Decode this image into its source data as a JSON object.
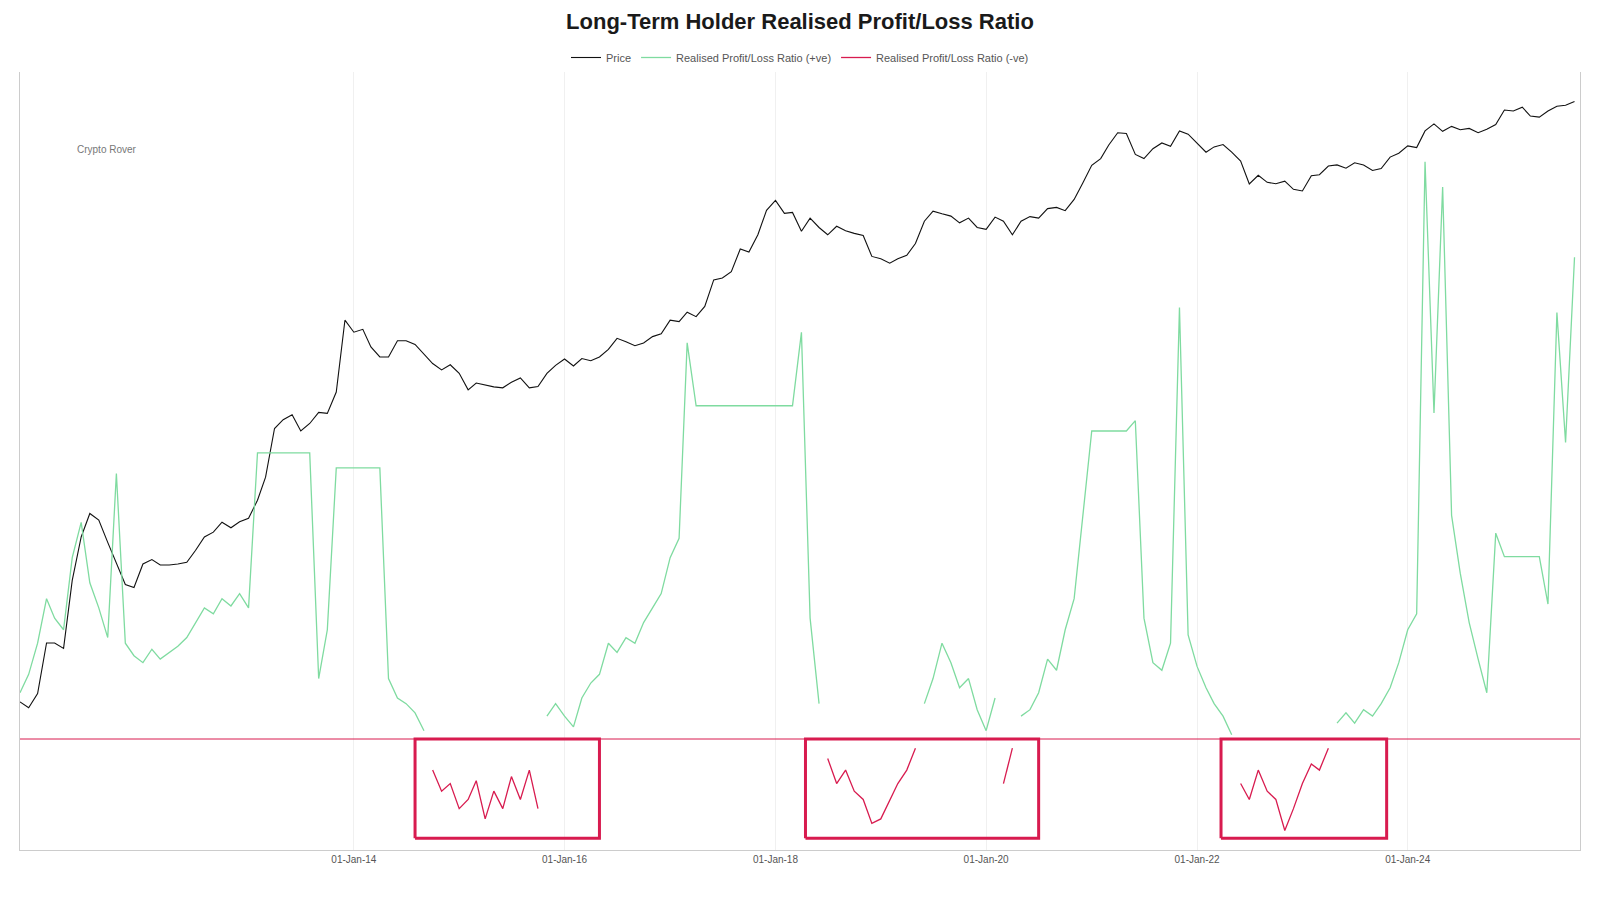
{
  "chart_data": {
    "type": "line",
    "title": "Long-Term Holder Realised Profit/Loss Ratio",
    "x": [
      "2010-11-01",
      "2010-12-01",
      "2011-01-01",
      "2011-02-01",
      "2011-03-01",
      "2011-04-01",
      "2011-05-01",
      "2011-06-01",
      "2011-07-01",
      "2011-08-01",
      "2011-09-01",
      "2011-10-01",
      "2011-11-01",
      "2011-12-01",
      "2012-01-01",
      "2012-02-01",
      "2012-03-01",
      "2012-04-01",
      "2012-05-01",
      "2012-06-01",
      "2012-07-01",
      "2012-08-01",
      "2012-09-01",
      "2012-10-01",
      "2012-11-01",
      "2012-12-01",
      "2013-01-01",
      "2013-02-01",
      "2013-03-01",
      "2013-04-01",
      "2013-05-01",
      "2013-06-01",
      "2013-07-01",
      "2013-08-01",
      "2013-09-01",
      "2013-10-01",
      "2013-11-01",
      "2013-12-01",
      "2014-01-01",
      "2014-02-01",
      "2014-03-01",
      "2014-04-01",
      "2014-05-01",
      "2014-06-01",
      "2014-07-01",
      "2014-08-01",
      "2014-09-01",
      "2014-10-01",
      "2014-11-01",
      "2014-12-01",
      "2015-01-01",
      "2015-02-01",
      "2015-03-01",
      "2015-04-01",
      "2015-05-01",
      "2015-06-01",
      "2015-07-01",
      "2015-08-01",
      "2015-09-01",
      "2015-10-01",
      "2015-11-01",
      "2015-12-01",
      "2016-01-01",
      "2016-02-01",
      "2016-03-01",
      "2016-04-01",
      "2016-05-01",
      "2016-06-01",
      "2016-07-01",
      "2016-08-01",
      "2016-09-01",
      "2016-10-01",
      "2016-11-01",
      "2016-12-01",
      "2017-01-01",
      "2017-02-01",
      "2017-03-01",
      "2017-04-01",
      "2017-05-01",
      "2017-06-01",
      "2017-07-01",
      "2017-08-01",
      "2017-09-01",
      "2017-10-01",
      "2017-11-01",
      "2017-12-01",
      "2018-01-01",
      "2018-02-01",
      "2018-03-01",
      "2018-04-01",
      "2018-05-01",
      "2018-06-01",
      "2018-07-01",
      "2018-08-01",
      "2018-09-01",
      "2018-10-01",
      "2018-11-01",
      "2018-12-01",
      "2019-01-01",
      "2019-02-01",
      "2019-03-01",
      "2019-04-01",
      "2019-05-01",
      "2019-06-01",
      "2019-07-01",
      "2019-08-01",
      "2019-09-01",
      "2019-10-01",
      "2019-11-01",
      "2019-12-01",
      "2020-01-01",
      "2020-02-01",
      "2020-03-01",
      "2020-04-01",
      "2020-05-01",
      "2020-06-01",
      "2020-07-01",
      "2020-08-01",
      "2020-09-01",
      "2020-10-01",
      "2020-11-01",
      "2020-12-01",
      "2021-01-01",
      "2021-02-01",
      "2021-03-01",
      "2021-04-01",
      "2021-05-01",
      "2021-06-01",
      "2021-07-01",
      "2021-08-01",
      "2021-09-01",
      "2021-10-01",
      "2021-11-01",
      "2021-12-01",
      "2022-01-01",
      "2022-02-01",
      "2022-03-01",
      "2022-04-01",
      "2022-05-01",
      "2022-06-01",
      "2022-07-01",
      "2022-08-01",
      "2022-09-01",
      "2022-10-01",
      "2022-11-01",
      "2022-12-01",
      "2023-01-01",
      "2023-02-01",
      "2023-03-01",
      "2023-04-01",
      "2023-05-01",
      "2023-06-01",
      "2023-07-01",
      "2023-08-01",
      "2023-09-01",
      "2023-10-01",
      "2023-11-01",
      "2023-12-01",
      "2024-01-01",
      "2024-02-01",
      "2024-03-01",
      "2024-04-01",
      "2024-05-01",
      "2024-06-01",
      "2024-07-01",
      "2024-08-01",
      "2024-09-01",
      "2024-10-01",
      "2024-11-01",
      "2024-12-01",
      "2025-01-01",
      "2025-02-01",
      "2025-03-01",
      "2025-04-01",
      "2025-05-01",
      "2025-06-01",
      "2025-07-01",
      "2025-08-01"
    ],
    "series": [
      {
        "name": "Price",
        "color": "#111111",
        "values": [
          0.25,
          0.22,
          0.3,
          0.9,
          0.9,
          0.8,
          3.5,
          9,
          15,
          13,
          8,
          5,
          3.2,
          3,
          5,
          5.5,
          4.9,
          4.9,
          5,
          5.2,
          6.7,
          9,
          10,
          12.4,
          11,
          12.5,
          13.5,
          20,
          33,
          95,
          115,
          128,
          90,
          106,
          135,
          132,
          210,
          1000,
          770,
          820,
          560,
          450,
          450,
          640,
          640,
          590,
          480,
          390,
          340,
          380,
          315,
          220,
          255,
          245,
          235,
          230,
          260,
          285,
          230,
          237,
          315,
          375,
          430,
          370,
          435,
          415,
          450,
          530,
          675,
          625,
          575,
          610,
          700,
          745,
          1000,
          970,
          1190,
          1080,
          1350,
          2400,
          2500,
          2870,
          4700,
          4400,
          6400,
          10900,
          13500,
          10200,
          10400,
          6900,
          9200,
          7500,
          6400,
          7700,
          7000,
          6600,
          6300,
          4000,
          3800,
          3450,
          3800,
          4100,
          5300,
          8600,
          10700,
          10100,
          9600,
          8300,
          9200,
          7500,
          7200,
          9400,
          8600,
          6400,
          8600,
          9500,
          9200,
          11300,
          11600,
          10800,
          13800,
          19700,
          29000,
          33500,
          45000,
          58800,
          57800,
          36700,
          33500,
          41500,
          47100,
          43800,
          61000,
          57000,
          47000,
          38500,
          43200,
          45500,
          38500,
          31800,
          19300,
          23300,
          20000,
          19400,
          20500,
          17200,
          16600,
          23100,
          23600,
          28500,
          29200,
          27200,
          30600,
          29200,
          25900,
          27000,
          34600,
          37700,
          44200,
          42600,
          61200,
          71300,
          60600,
          67500,
          62700,
          64600,
          58900,
          63300,
          70300,
          96400,
          94400,
          102400,
          84400,
          82500,
          94200,
          104600,
          106800,
          115700
        ]
      },
      {
        "name": "Realised Profit/Loss Ratio (+ve)",
        "color": "#7fdba0",
        "axis": "y2",
        "values": [
          1.7,
          2.1,
          3.0,
          5.0,
          4.0,
          3.5,
          8,
          12,
          6,
          4.5,
          3.2,
          21,
          3.0,
          2.6,
          2.4,
          2.8,
          2.5,
          2.7,
          2.9,
          3.2,
          3.8,
          4.5,
          4.2,
          5.0,
          4.6,
          5.3,
          4.5,
          26.6,
          26.6,
          26.6,
          26.6,
          26.6,
          26.6,
          26.6,
          2.0,
          3.5,
          22.4,
          22.4,
          22.4,
          22.4,
          22.4,
          22.4,
          2.0,
          1.6,
          1.5,
          1.35,
          1.1,
          null,
          null,
          null,
          null,
          null,
          null,
          null,
          null,
          null,
          null,
          null,
          null,
          null,
          1.3,
          1.5,
          1.3,
          1.15,
          1.6,
          1.9,
          2.1,
          3.0,
          2.7,
          3.2,
          3.0,
          3.8,
          4.5,
          5.3,
          8,
          10,
          94,
          45.7,
          45.7,
          45.7,
          45.7,
          45.7,
          45.7,
          45.7,
          45.7,
          45.7,
          45.7,
          45.7,
          45.7,
          106,
          4.0,
          1.5,
          null,
          null,
          null,
          null,
          null,
          null,
          null,
          null,
          null,
          null,
          null,
          1.5,
          2.0,
          3.0,
          2.4,
          1.8,
          2.0,
          1.4,
          1.1,
          1.6,
          null,
          null,
          1.3,
          1.4,
          1.7,
          2.5,
          2.2,
          3.5,
          5.0,
          13,
          34.2,
          34.2,
          34.2,
          34.2,
          34.2,
          38.5,
          4.0,
          2.4,
          2.2,
          3.0,
          141,
          3.3,
          2.3,
          1.8,
          1.5,
          1.3,
          1.05,
          null,
          null,
          null,
          null,
          null,
          null,
          null,
          null,
          null,
          null,
          null,
          1.2,
          1.35,
          1.2,
          1.4,
          1.3,
          1.5,
          1.8,
          2.4,
          3.5,
          4.2,
          750,
          42,
          562,
          13,
          6.7,
          3.8,
          2.5,
          1.7,
          10.6,
          8.1,
          8.1,
          8.1,
          8.1,
          8.1,
          4.7,
          133,
          30,
          251
        ]
      },
      {
        "name": "Realised Profit/Loss Ratio (-ve)",
        "color": "#d81b4f",
        "axis": "y2",
        "values": [
          null,
          null,
          null,
          null,
          null,
          null,
          null,
          null,
          null,
          null,
          null,
          null,
          null,
          null,
          null,
          null,
          null,
          null,
          null,
          null,
          null,
          null,
          null,
          null,
          null,
          null,
          null,
          null,
          null,
          null,
          null,
          null,
          null,
          null,
          null,
          null,
          null,
          null,
          null,
          null,
          null,
          null,
          null,
          null,
          null,
          null,
          null,
          0.7,
          0.55,
          0.6,
          0.45,
          0.5,
          0.62,
          0.4,
          0.55,
          0.45,
          0.65,
          0.5,
          0.7,
          0.45,
          null,
          null,
          null,
          null,
          null,
          null,
          null,
          null,
          null,
          null,
          null,
          null,
          null,
          null,
          null,
          null,
          null,
          null,
          null,
          null,
          null,
          null,
          null,
          null,
          null,
          null,
          null,
          null,
          null,
          null,
          null,
          null,
          0.8,
          0.6,
          0.7,
          0.55,
          0.5,
          0.38,
          0.4,
          0.5,
          0.6,
          0.7,
          0.9,
          null,
          null,
          null,
          null,
          null,
          null,
          null,
          null,
          null,
          0.6,
          0.9,
          null,
          null,
          null,
          null,
          null,
          null,
          null,
          null,
          null,
          null,
          null,
          null,
          null,
          null,
          null,
          null,
          null,
          null,
          null,
          null,
          null,
          null,
          null,
          null,
          null,
          0.6,
          0.5,
          0.7,
          0.55,
          0.5,
          0.35,
          0.45,
          0.6,
          0.75,
          0.7,
          0.9,
          null,
          null,
          null,
          null,
          null,
          null,
          null,
          null,
          null,
          null,
          null,
          null,
          null,
          null,
          null,
          null,
          null,
          null,
          null,
          null,
          null,
          null,
          null,
          null,
          null,
          null,
          null,
          null
        ]
      }
    ],
    "xlim": [
      "2010-11-01",
      "2025-08-20"
    ],
    "xticks": [
      {
        "value": "2014-01-01",
        "label": "01-Jan-14"
      },
      {
        "value": "2016-01-01",
        "label": "01-Jan-16"
      },
      {
        "value": "2018-01-01",
        "label": "01-Jan-18"
      },
      {
        "value": "2020-01-01",
        "label": "01-Jan-20"
      },
      {
        "value": "2022-01-01",
        "label": "01-Jan-22"
      },
      {
        "value": "2024-01-01",
        "label": "01-Jan-24"
      }
    ],
    "ylim": [
      0.01,
      220000
    ],
    "yticks": [],
    "y2lim": [
      0.28,
      2100
    ],
    "y2ticks": [],
    "log": "y",
    "grid": true,
    "legend": "top",
    "tick_labels": "x",
    "reference_line": {
      "value": 1,
      "color": "#d81b4f"
    },
    "boxes": [
      {
        "x": [
          "2014-08-01",
          "2016-05-01"
        ],
        "y": [
          0.32,
          1
        ],
        "color": "#d81b4f"
      },
      {
        "x": [
          "2018-04-15",
          "2020-07-01"
        ],
        "y": [
          0.32,
          1
        ],
        "color": "#d81b4f"
      },
      {
        "x": [
          "2022-03-25",
          "2023-10-20"
        ],
        "y": [
          0.32,
          1
        ],
        "color": "#d81b4f"
      }
    ],
    "watermark": "Crypto Rover"
  }
}
